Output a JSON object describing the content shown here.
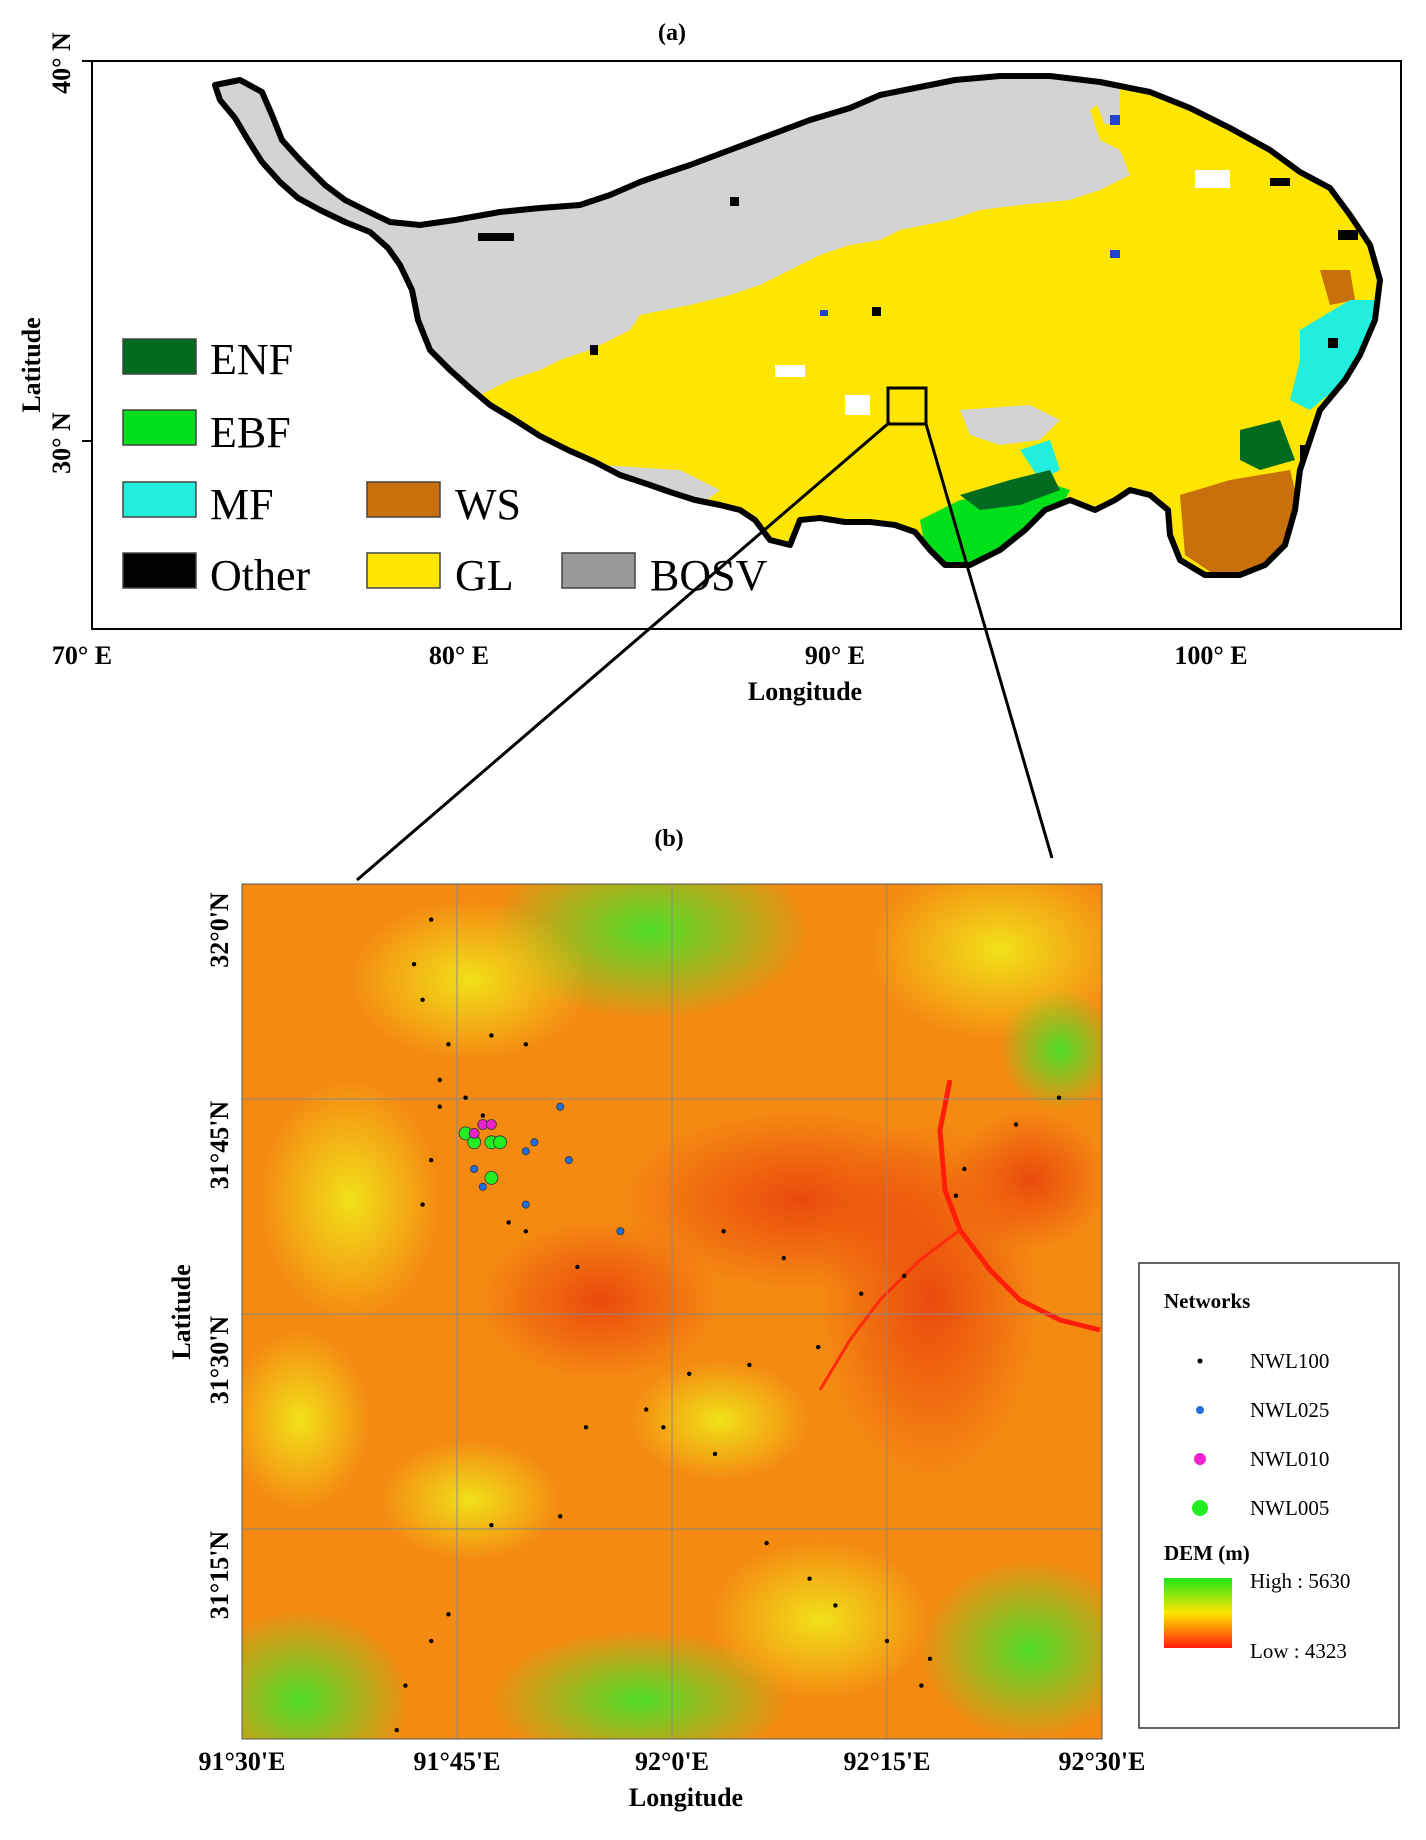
{
  "panel_a": {
    "title": "(a)",
    "x_ticks": [
      "70° E",
      "80° E",
      "90° E",
      "100° E"
    ],
    "y_ticks": [
      "40° N",
      "30° N"
    ],
    "xlabel": "Longitude",
    "ylabel": "Latitude",
    "legend": [
      {
        "label": "ENF",
        "color": "#006b1f"
      },
      {
        "label": "EBF",
        "color": "#00e01a"
      },
      {
        "label": "MF",
        "color": "#22eedd"
      },
      {
        "label": "WS",
        "color": "#c7700c"
      },
      {
        "label": "Other",
        "color": "#000000"
      },
      {
        "label": "GL",
        "color": "#ffe600"
      },
      {
        "label": "BOSV",
        "color": "#9a9a9a"
      }
    ],
    "colors": {
      "barren": "#d3d3d3",
      "border": "#000000"
    }
  },
  "panel_b": {
    "title": "(b)",
    "x_ticks": [
      "91°30'E",
      "91°45'E",
      "92°0'E",
      "92°15'E",
      "92°30'E"
    ],
    "y_ticks": [
      "32°0'N",
      "31°45'N",
      "31°30'N",
      "31°15'N"
    ],
    "xlabel": "Longitude",
    "ylabel": "Latitude",
    "legend": {
      "title": "Networks",
      "items": [
        {
          "label": "NWL100",
          "color": "#000000"
        },
        {
          "label": "NWL025",
          "color": "#1f6fe0"
        },
        {
          "label": "NWL010",
          "color": "#ee22cc"
        },
        {
          "label": "NWL005",
          "color": "#22ee22"
        }
      ],
      "dem_title": "DEM (m)",
      "dem_high": "High : 5630",
      "dem_low": "Low : 4323"
    }
  },
  "chart_data": {
    "type": "scatter",
    "x_range": [
      91.5,
      92.5
    ],
    "y_range": [
      31.04,
      32.0
    ],
    "series": [
      {
        "name": "NWL100",
        "points": [
          [
            91.72,
            31.96
          ],
          [
            91.7,
            31.91
          ],
          [
            91.71,
            31.87
          ],
          [
            91.74,
            31.82
          ],
          [
            91.79,
            31.83
          ],
          [
            91.83,
            31.82
          ],
          [
            91.73,
            31.78
          ],
          [
            91.76,
            31.76
          ],
          [
            91.73,
            31.75
          ],
          [
            91.78,
            31.74
          ],
          [
            91.72,
            31.69
          ],
          [
            91.71,
            31.64
          ],
          [
            91.81,
            31.62
          ],
          [
            91.83,
            31.61
          ],
          [
            91.89,
            31.57
          ],
          [
            92.06,
            31.61
          ],
          [
            92.13,
            31.58
          ],
          [
            92.22,
            31.54
          ],
          [
            92.27,
            31.56
          ],
          [
            92.33,
            31.65
          ],
          [
            92.34,
            31.68
          ],
          [
            92.4,
            31.73
          ],
          [
            92.45,
            31.76
          ],
          [
            92.17,
            31.48
          ],
          [
            92.09,
            31.46
          ],
          [
            92.02,
            31.45
          ],
          [
            91.97,
            31.41
          ],
          [
            91.99,
            31.39
          ],
          [
            91.9,
            31.39
          ],
          [
            92.05,
            31.36
          ],
          [
            91.87,
            31.29
          ],
          [
            91.79,
            31.28
          ],
          [
            92.11,
            31.26
          ],
          [
            92.16,
            31.22
          ],
          [
            92.19,
            31.19
          ],
          [
            91.74,
            31.18
          ],
          [
            92.25,
            31.15
          ],
          [
            91.72,
            31.15
          ],
          [
            92.3,
            31.13
          ],
          [
            91.69,
            31.1
          ],
          [
            91.68,
            31.05
          ],
          [
            92.29,
            31.1
          ]
        ]
      },
      {
        "name": "NWL025",
        "points": [
          [
            91.77,
            31.68
          ],
          [
            91.78,
            31.66
          ],
          [
            91.84,
            31.71
          ],
          [
            91.87,
            31.75
          ],
          [
            91.83,
            31.7
          ],
          [
            91.83,
            31.64
          ],
          [
            91.88,
            31.69
          ],
          [
            91.94,
            31.61
          ]
        ]
      },
      {
        "name": "NWL010",
        "points": [
          [
            91.77,
            31.72
          ],
          [
            91.78,
            31.73
          ],
          [
            91.79,
            31.73
          ]
        ]
      },
      {
        "name": "NWL005",
        "points": [
          [
            91.76,
            31.72
          ],
          [
            91.77,
            31.71
          ],
          [
            91.79,
            31.71
          ],
          [
            91.8,
            31.71
          ],
          [
            91.79,
            31.67
          ]
        ]
      }
    ]
  }
}
